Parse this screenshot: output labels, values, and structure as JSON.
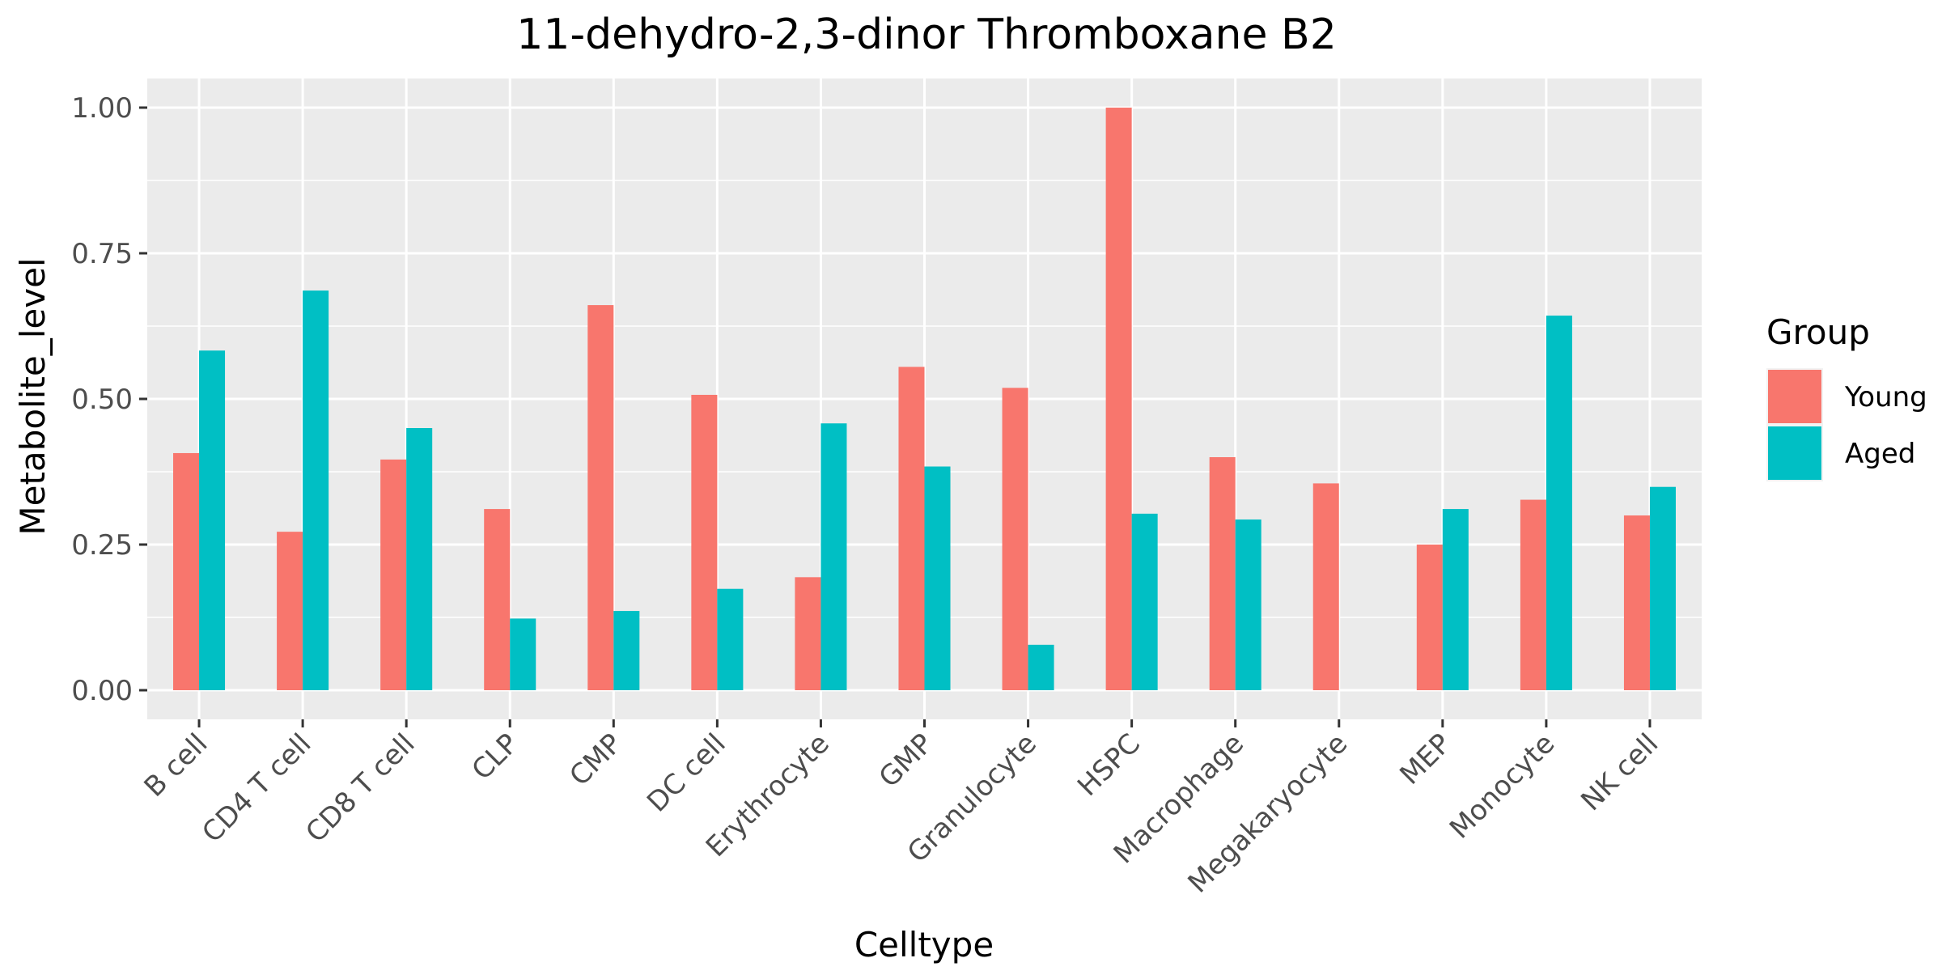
{
  "chart_data": {
    "type": "bar",
    "title": "11-dehydro-2,3-dinor Thromboxane B2",
    "xlabel": "Celltype",
    "ylabel": "Metabolite_level",
    "ylim": [
      -0.05,
      1.05
    ],
    "yticks": [
      0,
      0.25,
      0.5,
      0.75,
      1
    ],
    "ytick_labels": [
      "0.00",
      "0.25",
      "0.50",
      "0.75",
      "1.00"
    ],
    "grid": true,
    "legend_position": "right",
    "legend_title": "Group",
    "categories": [
      "B cell",
      "CD4 T cell",
      "CD8 T cell",
      "CLP",
      "CMP",
      "DC cell",
      "Erythrocyte",
      "GMP",
      "Granulocyte",
      "HSPC",
      "Macrophage",
      "Megakaryocyte",
      "MEP",
      "Monocyte",
      "NK cell"
    ],
    "series": [
      {
        "name": "Young",
        "color": "#F8766D",
        "values": [
          0.407,
          0.272,
          0.396,
          0.311,
          0.661,
          0.507,
          0.194,
          0.555,
          0.519,
          1.0,
          0.4,
          0.355,
          0.25,
          0.327,
          0.3
        ]
      },
      {
        "name": "Aged",
        "color": "#00BFC4",
        "values": [
          0.583,
          0.686,
          0.45,
          0.123,
          0.136,
          0.174,
          0.458,
          0.384,
          0.078,
          0.303,
          0.293,
          0,
          0.311,
          0.643,
          0.349
        ]
      }
    ]
  },
  "style": {
    "panel_background": "#EBEBEB",
    "grid_color": "#FFFFFF",
    "tick_color": "#333333"
  }
}
